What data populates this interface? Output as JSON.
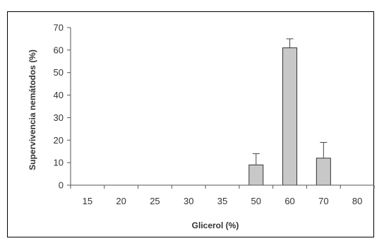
{
  "chart_data": {
    "type": "bar",
    "title": "",
    "xlabel": "Glicerol (%)",
    "ylabel": "Supervivencia nemátodos (%)",
    "categories": [
      "15",
      "20",
      "25",
      "30",
      "35",
      "50",
      "60",
      "70",
      "80"
    ],
    "values": [
      0,
      0,
      0,
      0,
      0,
      9,
      61,
      12,
      0
    ],
    "errors": [
      0,
      0,
      0,
      0,
      0,
      5,
      4,
      7,
      0
    ],
    "ylim": [
      0,
      70
    ],
    "yticks": [
      "0",
      "10",
      "20",
      "30",
      "40",
      "50",
      "60",
      "70"
    ],
    "grid": false,
    "legend": "none",
    "bar_color": "#c8c8c8",
    "bar_edge_color": "#333333"
  }
}
